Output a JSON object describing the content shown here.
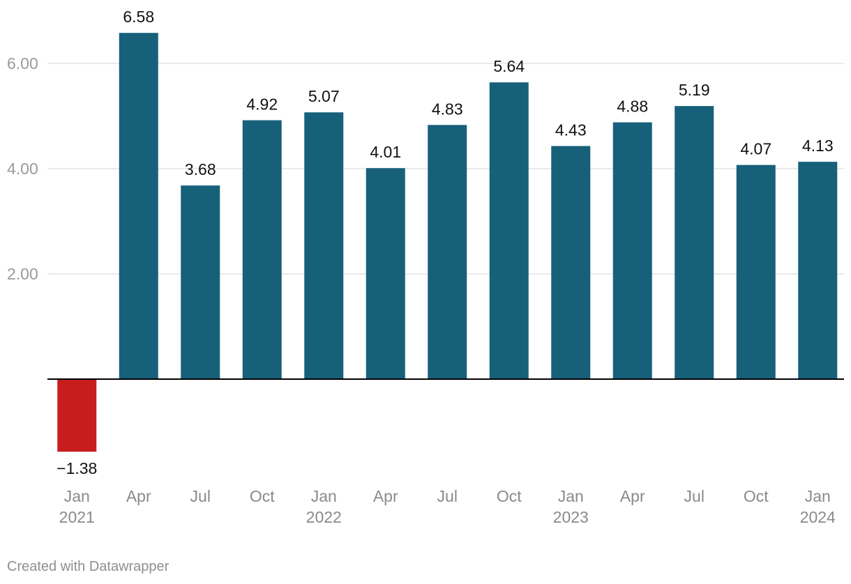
{
  "chart_data": {
    "type": "bar",
    "title": "",
    "xlabel": "",
    "ylabel": "",
    "ylim": [
      -2.0,
      7.0
    ],
    "yticks": [
      2.0,
      4.0,
      6.0
    ],
    "ytick_labels": [
      "2.00",
      "4.00",
      "6.00"
    ],
    "categories": [
      {
        "month": "Jan",
        "year": "2021"
      },
      {
        "month": "Apr",
        "year": ""
      },
      {
        "month": "Jul",
        "year": ""
      },
      {
        "month": "Oct",
        "year": ""
      },
      {
        "month": "Jan",
        "year": "2022"
      },
      {
        "month": "Apr",
        "year": ""
      },
      {
        "month": "Jul",
        "year": ""
      },
      {
        "month": "Oct",
        "year": ""
      },
      {
        "month": "Jan",
        "year": "2023"
      },
      {
        "month": "Apr",
        "year": ""
      },
      {
        "month": "Jul",
        "year": ""
      },
      {
        "month": "Oct",
        "year": ""
      },
      {
        "month": "Jan",
        "year": "2024"
      }
    ],
    "values": [
      -1.38,
      6.58,
      3.68,
      4.92,
      5.07,
      4.01,
      4.83,
      5.64,
      4.43,
      4.88,
      5.19,
      4.07,
      4.13
    ],
    "value_labels": [
      "−1.38",
      "6.58",
      "3.68",
      "4.92",
      "5.07",
      "4.01",
      "4.83",
      "5.64",
      "4.43",
      "4.88",
      "5.19",
      "4.07",
      "4.13"
    ],
    "colors": {
      "positive": "#17607a",
      "negative": "#c71e1d"
    },
    "grid": true
  },
  "footer": {
    "credit": "Created with Datawrapper"
  }
}
